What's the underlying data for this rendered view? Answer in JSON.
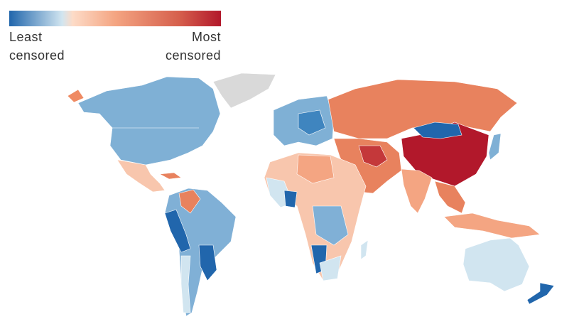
{
  "legend": {
    "low_label": "Least censored",
    "high_label": "Most censored"
  }
}
